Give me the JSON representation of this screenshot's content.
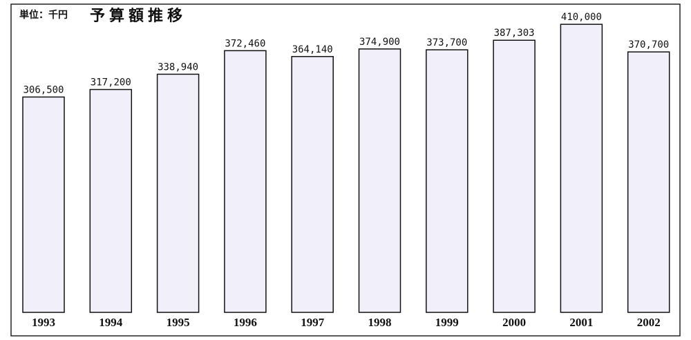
{
  "chart_data": {
    "type": "bar",
    "title": "予算額推移",
    "subtitle": "単位：千円",
    "categories": [
      "1993",
      "1994",
      "1995",
      "1996",
      "1997",
      "1998",
      "1999",
      "2000",
      "2001",
      "2002"
    ],
    "values": [
      306500,
      317200,
      338940,
      372460,
      364140,
      374900,
      373700,
      387303,
      410000,
      370700
    ],
    "value_labels": [
      "306,500",
      "317,200",
      "338,940",
      "372,460",
      "364,140",
      "374,900",
      "373,700",
      "387,303",
      "410,000",
      "370,700"
    ],
    "color": "#f1eff9",
    "ylim": [
      0,
      420000
    ]
  }
}
